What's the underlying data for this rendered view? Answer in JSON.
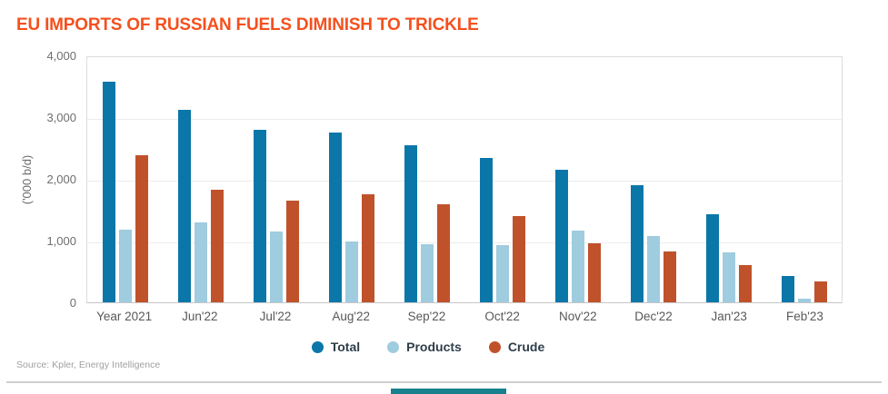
{
  "title": "EU IMPORTS OF RUSSIAN FUELS DIMINISH TO TRICKLE",
  "source": "Source: Kpler, Energy Intelligence",
  "colors": {
    "title": "#f5501e",
    "total": "#0b77a8",
    "products": "#9fccdf",
    "crude": "#c0522b",
    "accent_bar": "#16808c"
  },
  "chart_data": {
    "type": "bar",
    "title": "EU IMPORTS OF RUSSIAN FUELS DIMINISH TO TRICKLE",
    "xlabel": "",
    "ylabel": "('000 b/d)",
    "ylim": [
      0,
      4000
    ],
    "grid": true,
    "legend_position": "bottom-center",
    "categories": [
      "Year 2021",
      "Jun'22",
      "Jul'22",
      "Aug'22",
      "Sep'22",
      "Oct'22",
      "Nov'22",
      "Dec'22",
      "Jan'23",
      "Feb'23"
    ],
    "yticks": [
      {
        "value": 0,
        "label": "0"
      },
      {
        "value": 1000,
        "label": "1,000"
      },
      {
        "value": 2000,
        "label": "2,000"
      },
      {
        "value": 3000,
        "label": "3,000"
      },
      {
        "value": 4000,
        "label": "4,000"
      }
    ],
    "series": [
      {
        "name": "Total",
        "color": "#0b77a8",
        "values": [
          3570,
          3120,
          2790,
          2750,
          2550,
          2340,
          2140,
          1900,
          1420,
          420
        ]
      },
      {
        "name": "Products",
        "color": "#9fccdf",
        "values": [
          1170,
          1290,
          1140,
          990,
          940,
          930,
          1160,
          1080,
          810,
          65
        ]
      },
      {
        "name": "Crude",
        "color": "#c0522b",
        "values": [
          2380,
          1820,
          1650,
          1750,
          1590,
          1400,
          960,
          830,
          600,
          340
        ]
      }
    ]
  }
}
